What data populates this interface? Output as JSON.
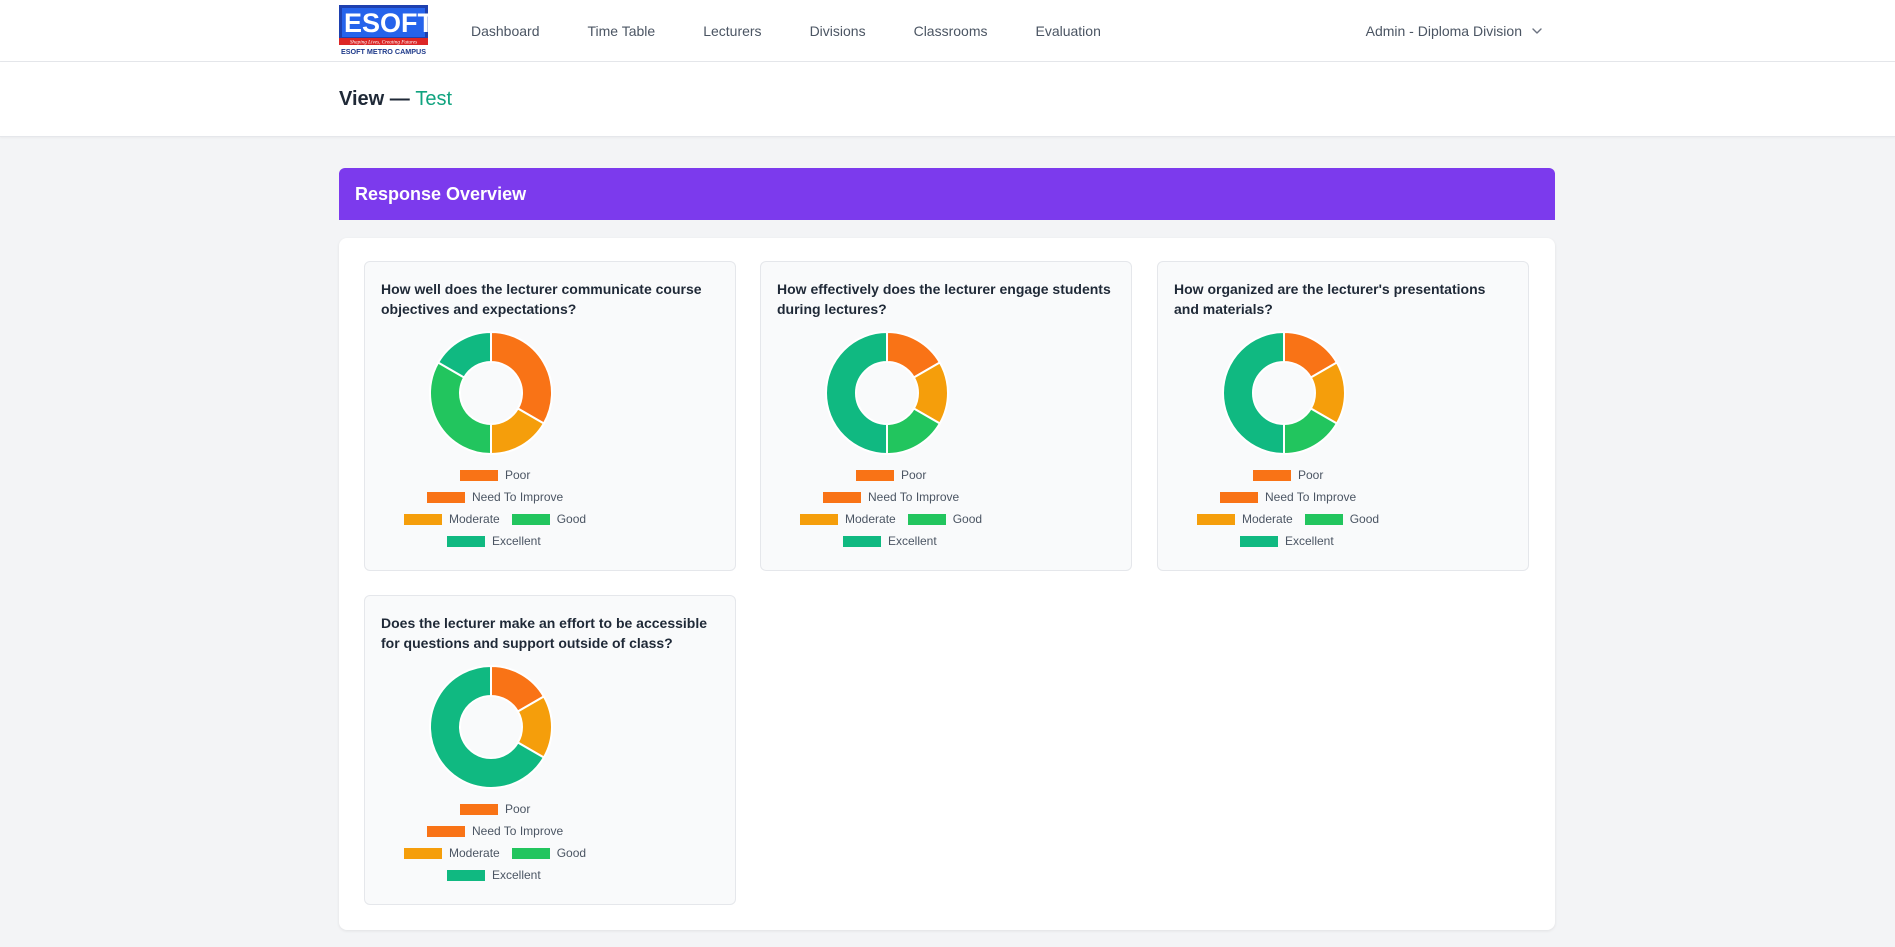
{
  "logo": {
    "brand": "ESOFT",
    "tagline": "Shaping Lives, Creating Futures",
    "campus": "ESOFT METRO CAMPUS"
  },
  "nav": {
    "items": [
      {
        "label": "Dashboard"
      },
      {
        "label": "Time Table"
      },
      {
        "label": "Lecturers"
      },
      {
        "label": "Divisions"
      },
      {
        "label": "Classrooms"
      },
      {
        "label": "Evaluation"
      }
    ],
    "user_label": "Admin - Diploma Division"
  },
  "header": {
    "prefix": "View — ",
    "name": "Test"
  },
  "banner": {
    "title": "Response Overview"
  },
  "colors": {
    "Poor": "#f97316",
    "Need To Improve": "#f97316",
    "Moderate": "#f59e0b",
    "Good": "#22c55e",
    "Excellent": "#10b981",
    "accent": "#7c3aed"
  },
  "legend": [
    "Poor",
    "Need To Improve",
    "Moderate",
    "Good",
    "Excellent"
  ],
  "questions": [
    {
      "title": "How well does the lecturer communicate course objectives and expectations?",
      "chart_data": {
        "type": "pie",
        "categories": [
          "Poor",
          "Need To Improve",
          "Moderate",
          "Good",
          "Excellent"
        ],
        "values": [
          0,
          2,
          1,
          2,
          1
        ]
      }
    },
    {
      "title": "How effectively does the lecturer engage students during lectures?",
      "chart_data": {
        "type": "pie",
        "categories": [
          "Poor",
          "Need To Improve",
          "Moderate",
          "Good",
          "Excellent"
        ],
        "values": [
          0,
          1,
          1,
          1,
          3
        ]
      }
    },
    {
      "title": "How organized are the lecturer's presentations and materials?",
      "chart_data": {
        "type": "pie",
        "categories": [
          "Poor",
          "Need To Improve",
          "Moderate",
          "Good",
          "Excellent"
        ],
        "values": [
          0,
          1,
          1,
          1,
          3
        ]
      }
    },
    {
      "title": "Does the lecturer make an effort to be accessible for questions and support outside of class?",
      "chart_data": {
        "type": "pie",
        "categories": [
          "Poor",
          "Need To Improve",
          "Moderate",
          "Good",
          "Excellent"
        ],
        "values": [
          0,
          1,
          1,
          0,
          4
        ]
      }
    }
  ]
}
